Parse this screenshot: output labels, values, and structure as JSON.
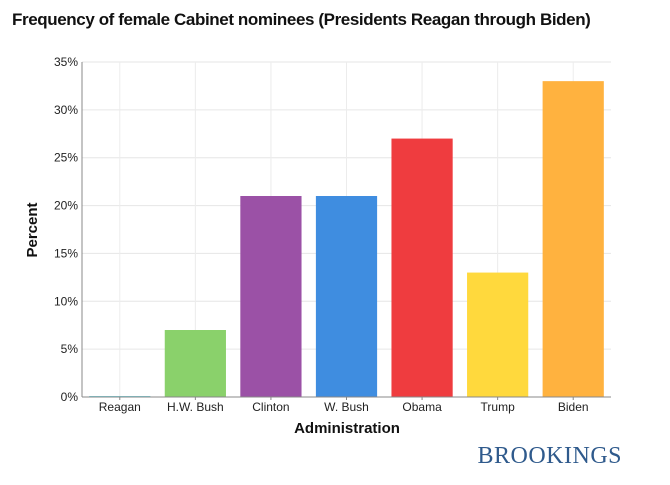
{
  "chart_data": {
    "type": "bar",
    "title": "Frequency of female Cabinet nominees (Presidents Reagan through Biden)",
    "xlabel": "Administration",
    "ylabel": "Percent",
    "categories": [
      "Reagan",
      "H.W. Bush",
      "Clinton",
      "W. Bush",
      "Obama",
      "Trump",
      "Biden"
    ],
    "values": [
      0,
      7,
      21,
      21,
      27,
      13,
      33
    ],
    "ylim": [
      0,
      35
    ],
    "yticks": [
      0,
      5,
      10,
      15,
      20,
      25,
      30,
      35
    ],
    "ytick_format": "%",
    "colors": [
      "#22b8c9",
      "#8ad16b",
      "#9b51a6",
      "#3f8de0",
      "#ef3c3f",
      "#ffd93d",
      "#ffb23f"
    ],
    "grid": true,
    "legend": "none"
  },
  "brand": {
    "name": "BROOKINGS",
    "color": "#2f5a8c"
  }
}
